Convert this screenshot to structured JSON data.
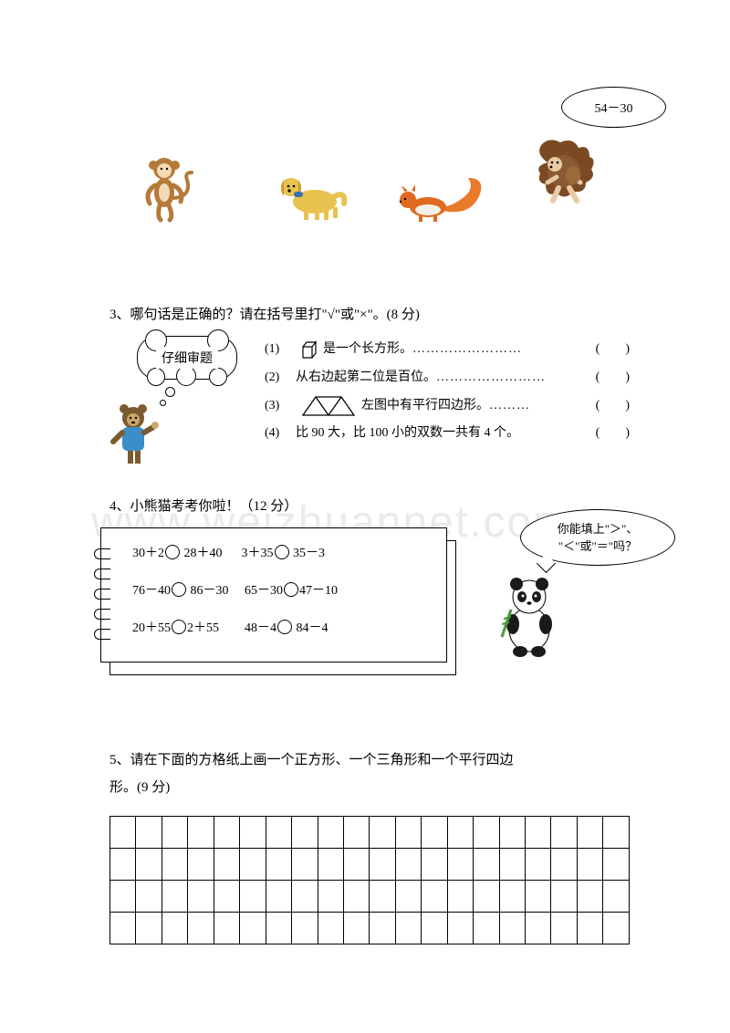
{
  "watermark": "www.weizhuannet.com",
  "speech_bubble": "54－30",
  "q3": {
    "prompt": "3、哪句话是正确的？请在括号里打\"√\"或\"×\"。(8 分)",
    "thought": "仔细审题",
    "paren": "(　　)",
    "items": [
      {
        "num": "(1)",
        "text_before": "",
        "text_after": "是一个长方形。"
      },
      {
        "num": "(2)",
        "text_before": "从右边起第二位是百位。",
        "text_after": ""
      },
      {
        "num": "(3)",
        "text_before": "",
        "text_after": "左图中有平行四边形。"
      },
      {
        "num": "(4)",
        "text_before": "比 90 大，比 100 小的双数一共有 4 个。",
        "text_after": ""
      }
    ]
  },
  "q4": {
    "prompt": "4、小熊猫考考你啦！（12 分）",
    "bubble_line1": "你能填上\"＞\"、",
    "bubble_line2": "\"＜\"或\"＝\"吗？",
    "rows": [
      [
        {
          "l": "30＋2",
          "r": "28＋40"
        },
        {
          "l": "3＋35",
          "r": "35－3"
        }
      ],
      [
        {
          "l": "76－40",
          "r": "86－30"
        },
        {
          "l": "65－30",
          "r": "47－10"
        }
      ],
      [
        {
          "l": "20＋55",
          "r": "2＋55"
        },
        {
          "l": "48－4",
          "r": "84－4"
        }
      ]
    ]
  },
  "q5": {
    "prompt_line1": "5、请在下面的方格纸上画一个正方形、一个三角形和一个平行四边",
    "prompt_line2": "形。(9 分)",
    "grid": {
      "rows": 4,
      "cols": 20
    }
  },
  "colors": {
    "monkey_body": "#b57a3a",
    "monkey_face": "#f4d9b5",
    "dog_body": "#e7c24e",
    "dog_collar": "#3a6fb0",
    "squirrel_body": "#e06a1f",
    "squirrel_tail": "#e87a2a",
    "hedgehog_body": "#7a4a22",
    "hedgehog_face": "#e9caa6",
    "bear_body": "#7a5a2e",
    "bear_shirt": "#3a8fc8",
    "panda_black": "#1a1a1a",
    "panda_white": "#ffffff",
    "panda_bamboo": "#4a9a3a"
  }
}
